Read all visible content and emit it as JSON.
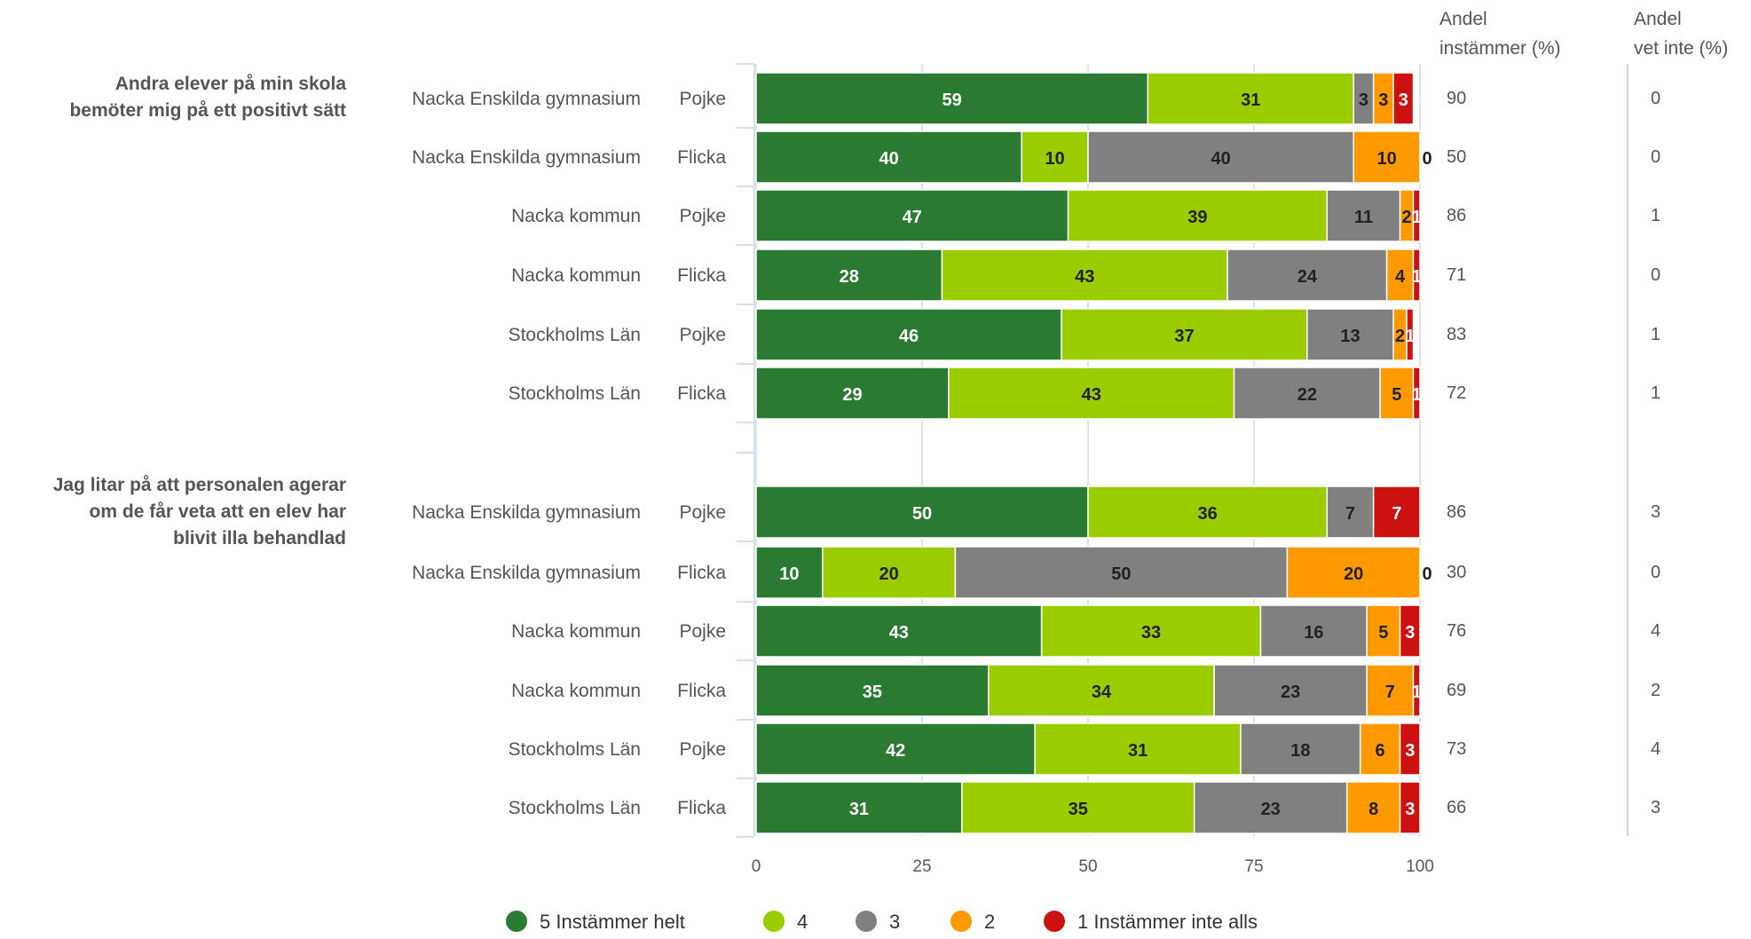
{
  "chart_data": {
    "type": "bar",
    "orientation": "horizontal",
    "stacked": true,
    "xlim": [
      0,
      100
    ],
    "xticks": [
      "0",
      "25",
      "50",
      "75",
      "100"
    ],
    "header_agree": [
      "Andel",
      "instämmer (%)"
    ],
    "header_dontknow": [
      "Andel",
      "vet inte (%)"
    ],
    "colors": [
      "#2a7a32",
      "#9acc00",
      "#808080",
      "#ff9900",
      "#cc1111"
    ],
    "legend": [
      "5 Instämmer helt",
      "4",
      "3",
      "2",
      "1 Instämmer inte alls"
    ],
    "groups": [
      {
        "question": [
          "Andra elever på min skola",
          "bemöter mig på ett positivt sätt"
        ],
        "rows": [
          {
            "unit": "Nacka Enskilda gymnasium",
            "gender": "Pojke",
            "values": [
              59,
              31,
              3,
              3,
              3
            ],
            "agree": "90",
            "dontknow": "0"
          },
          {
            "unit": "Nacka Enskilda gymnasium",
            "gender": "Flicka",
            "values": [
              40,
              10,
              40,
              10,
              0
            ],
            "agree": "50",
            "dontknow": "0"
          },
          {
            "unit": "Nacka kommun",
            "gender": "Pojke",
            "values": [
              47,
              39,
              11,
              2,
              1
            ],
            "agree": "86",
            "dontknow": "1"
          },
          {
            "unit": "Nacka kommun",
            "gender": "Flicka",
            "values": [
              28,
              43,
              24,
              4,
              1
            ],
            "agree": "71",
            "dontknow": "0"
          },
          {
            "unit": "Stockholms Län",
            "gender": "Pojke",
            "values": [
              46,
              37,
              13,
              2,
              1
            ],
            "agree": "83",
            "dontknow": "1"
          },
          {
            "unit": "Stockholms Län",
            "gender": "Flicka",
            "values": [
              29,
              43,
              22,
              5,
              1
            ],
            "agree": "72",
            "dontknow": "1"
          }
        ]
      },
      {
        "question": [
          "Jag litar på att personalen agerar",
          "om de får veta att en elev har",
          "blivit illa behandlad"
        ],
        "rows": [
          {
            "unit": "Nacka Enskilda gymnasium",
            "gender": "Pojke",
            "values": [
              50,
              36,
              7,
              0,
              7
            ],
            "agree": "86",
            "dontknow": "3"
          },
          {
            "unit": "Nacka Enskilda gymnasium",
            "gender": "Flicka",
            "values": [
              10,
              20,
              50,
              20,
              0
            ],
            "agree": "30",
            "dontknow": "0"
          },
          {
            "unit": "Nacka kommun",
            "gender": "Pojke",
            "values": [
              43,
              33,
              16,
              5,
              3
            ],
            "agree": "76",
            "dontknow": "4"
          },
          {
            "unit": "Nacka kommun",
            "gender": "Flicka",
            "values": [
              35,
              34,
              23,
              7,
              1
            ],
            "agree": "69",
            "dontknow": "2"
          },
          {
            "unit": "Stockholms Län",
            "gender": "Pojke",
            "values": [
              42,
              31,
              18,
              6,
              3
            ],
            "agree": "73",
            "dontknow": "4"
          },
          {
            "unit": "Stockholms Län",
            "gender": "Flicka",
            "values": [
              31,
              35,
              23,
              8,
              3
            ],
            "agree": "66",
            "dontknow": "3"
          }
        ]
      }
    ]
  }
}
